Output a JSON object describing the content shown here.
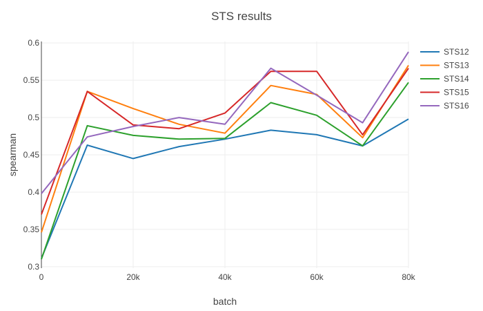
{
  "chart_data": {
    "type": "line",
    "title": "STS results",
    "xlabel": "batch",
    "ylabel": "spearman",
    "x": [
      0,
      10000,
      20000,
      30000,
      40000,
      50000,
      60000,
      70000,
      80000
    ],
    "xlim": [
      0,
      80000
    ],
    "ylim": [
      0.298,
      0.602
    ],
    "x_ticks": [
      0,
      20000,
      40000,
      60000,
      80000
    ],
    "x_tick_labels": [
      "0",
      "20k",
      "40k",
      "60k",
      "80k"
    ],
    "y_ticks": [
      0.3,
      0.35,
      0.4,
      0.45,
      0.5,
      0.55,
      0.6
    ],
    "y_tick_labels": [
      "0.3",
      "0.35",
      "0.4",
      "0.45",
      "0.5",
      "0.55",
      "0.6"
    ],
    "grid": true,
    "legend_position": "top-right",
    "series": [
      {
        "name": "STS12",
        "color": "#1f77b4",
        "values": [
          0.311,
          0.463,
          0.445,
          0.461,
          0.471,
          0.483,
          0.477,
          0.462,
          0.498
        ]
      },
      {
        "name": "STS13",
        "color": "#ff7f0e",
        "values": [
          0.346,
          0.535,
          0.512,
          0.491,
          0.479,
          0.543,
          0.531,
          0.473,
          0.57
        ]
      },
      {
        "name": "STS14",
        "color": "#2ca02c",
        "values": [
          0.31,
          0.489,
          0.476,
          0.471,
          0.472,
          0.52,
          0.503,
          0.462,
          0.547
        ]
      },
      {
        "name": "STS15",
        "color": "#d62728",
        "values": [
          0.37,
          0.535,
          0.49,
          0.485,
          0.506,
          0.562,
          0.562,
          0.477,
          0.566
        ]
      },
      {
        "name": "STS16",
        "color": "#9467bd",
        "values": [
          0.398,
          0.474,
          0.488,
          0.5,
          0.491,
          0.566,
          0.53,
          0.493,
          0.588
        ]
      }
    ]
  }
}
